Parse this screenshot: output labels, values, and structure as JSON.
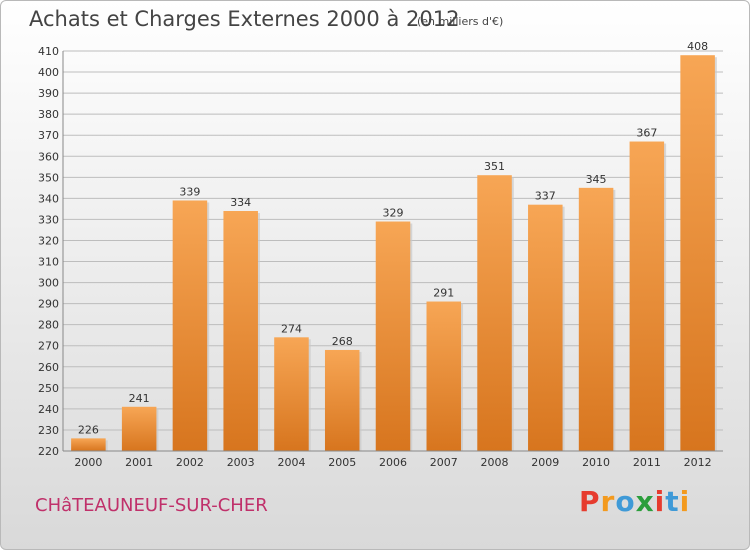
{
  "header": {
    "title": "Achats et Charges Externes 2000 à 2012",
    "unit": "(en milliers d'€)"
  },
  "footer": {
    "commune": "CHâTEAUNEUF-SUR-CHER",
    "logo_text": "Proxiti"
  },
  "colors": {
    "bar_top": "#f7a655",
    "bar_bottom": "#d7751e",
    "grid": "#bdbdbd",
    "axis_text": "#333333",
    "commune": "#c0306a",
    "logo": [
      "#e63b2e",
      "#f39a1e",
      "#3f9ad7",
      "#2b9e3b",
      "#e63b2e",
      "#3f9ad7",
      "#f39a1e"
    ]
  },
  "chart_data": {
    "type": "bar",
    "title": "Achats et Charges Externes 2000 à 2012",
    "subtitle": "(en milliers d'€)",
    "categories": [
      "2000",
      "2001",
      "2002",
      "2003",
      "2004",
      "2005",
      "2006",
      "2007",
      "2008",
      "2009",
      "2010",
      "2011",
      "2012"
    ],
    "values": [
      226,
      241,
      339,
      334,
      274,
      268,
      329,
      291,
      351,
      337,
      345,
      367,
      408
    ],
    "ylim": [
      220,
      410
    ],
    "ytick_step": 10,
    "grid": true,
    "legend": "none",
    "data_labels": true
  }
}
